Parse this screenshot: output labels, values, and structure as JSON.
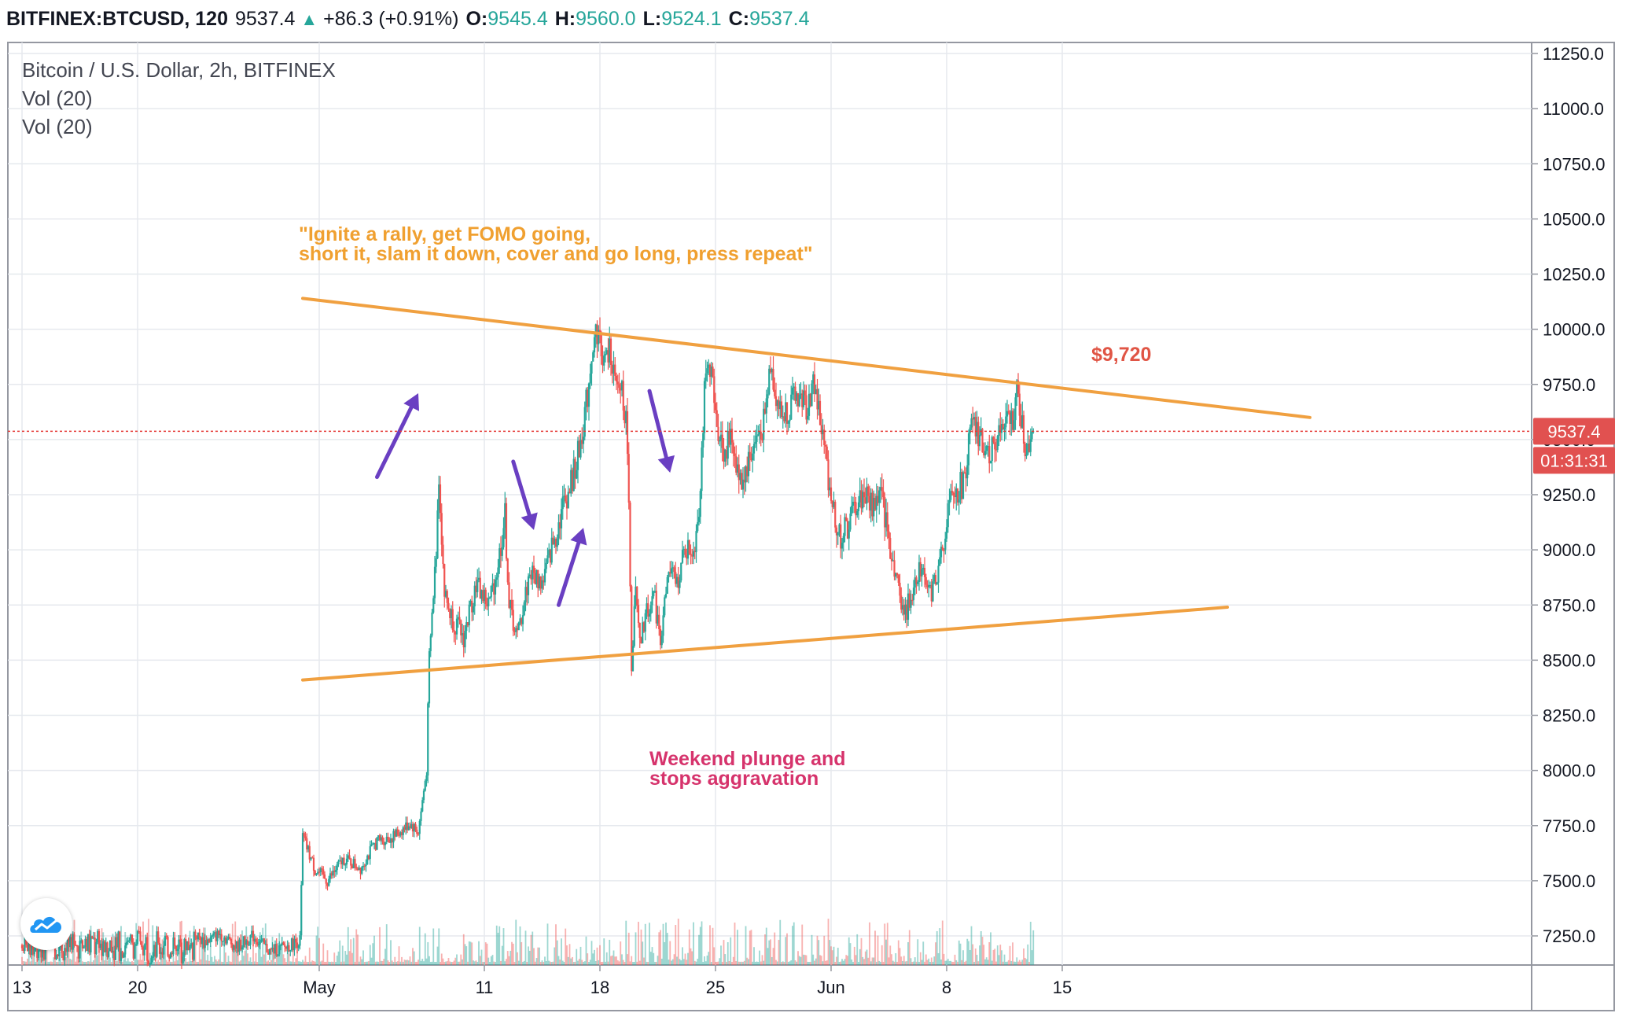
{
  "header": {
    "symbol": "BITFINEX:BTCUSD, 120",
    "last": "9537.4",
    "change": "+86.3 (+0.91%)",
    "open_label": "O:",
    "open": "9545.4",
    "high_label": "H:",
    "high": "9560.0",
    "low_label": "L:",
    "low": "9524.1",
    "close_label": "C:",
    "close": "9537.4"
  },
  "legend": {
    "title": "Bitcoin / U.S. Dollar, 2h, BITFINEX",
    "indicator_1": "Vol (20)",
    "indicator_2": "Vol (20)"
  },
  "price_tag": {
    "value": "9537.4",
    "countdown": "01:31:31"
  },
  "annotations": {
    "quote_line1": "\"Ignite a rally, get FOMO going,",
    "quote_line2": "short it, slam it down, cover and go long, press repeat\"",
    "level": "$9,720",
    "plunge_line1": "Weekend plunge and",
    "plunge_line2": "stops aggravation"
  },
  "colors": {
    "up": "#26a69a",
    "down": "#ef5350",
    "trendline": "#f0a040",
    "quote_text": "#f0a030",
    "level_text": "#e05545",
    "plunge_text": "#d6336c",
    "arrow": "#6a3fc2",
    "price_line": "#e53935",
    "price_tag_bg": "#e15150"
  },
  "chart_data": {
    "type": "candlestick",
    "title": "Bitcoin / U.S. Dollar, 2h, BITFINEX",
    "yaxis_ticks": [
      11250,
      11000,
      10750,
      10500,
      10250,
      10000,
      9750,
      9500,
      9250,
      9000,
      8750,
      8500,
      8250,
      8000,
      7750,
      7500,
      7250
    ],
    "ylim": [
      7130,
      11280
    ],
    "xaxis_ticks": [
      "13",
      "20",
      "May",
      "11",
      "18",
      "25",
      "Jun",
      "8",
      "15"
    ],
    "current_price": 9537.4,
    "price_path": [
      [
        "Apr 23 08:00",
        7270
      ],
      [
        "Apr 24 00:00",
        7220
      ],
      [
        "Apr 25 00:00",
        7260
      ],
      [
        "Apr 26 00:00",
        7200
      ],
      [
        "Apr 27 00:00",
        7250
      ],
      [
        "Apr 28 00:00",
        7180
      ],
      [
        "Apr 29 00:00",
        7200
      ],
      [
        "Apr 29 20:00",
        7230
      ],
      [
        "Apr 30 00:00",
        7700
      ],
      [
        "Apr 30 18:00",
        7550
      ],
      [
        "May 1 12:00",
        7500
      ],
      [
        "May 2 12:00",
        7600
      ],
      [
        "May 3 12:00",
        7560
      ],
      [
        "May 4 12:00",
        7680
      ],
      [
        "May 5 12:00",
        7700
      ],
      [
        "May 6 12:00",
        7760
      ],
      [
        "May 7 00:00",
        7720
      ],
      [
        "May 7 12:00",
        8000
      ],
      [
        "May 7 16:00",
        8500
      ],
      [
        "May 7 22:00",
        8800
      ],
      [
        "May 8 02:00",
        9000
      ],
      [
        "May 8 06:00",
        9350
      ],
      [
        "May 8 14:00",
        8800
      ],
      [
        "May 9 00:00",
        8700
      ],
      [
        "May 9 18:00",
        8600
      ],
      [
        "May 10 12:00",
        8850
      ],
      [
        "May 11 06:00",
        8750
      ],
      [
        "May 11 18:00",
        8900
      ],
      [
        "May 12 06:00",
        9150
      ],
      [
        "May 12 12:00",
        8750
      ],
      [
        "May 13 00:00",
        8600
      ],
      [
        "May 13 18:00",
        8900
      ],
      [
        "May 14 12:00",
        8850
      ],
      [
        "May 15 06:00",
        9050
      ],
      [
        "May 15 18:00",
        9200
      ],
      [
        "May 16 06:00",
        9300
      ],
      [
        "May 16 18:00",
        9450
      ],
      [
        "May 17 06:00",
        9700
      ],
      [
        "May 17 12:00",
        9900
      ],
      [
        "May 17 20:00",
        10000
      ],
      [
        "May 18 06:00",
        9850
      ],
      [
        "May 18 16:00",
        9900
      ],
      [
        "May 19 00:00",
        9700
      ],
      [
        "May 19 08:00",
        9750
      ],
      [
        "May 19 16:00",
        9500
      ],
      [
        "May 19 22:00",
        8500
      ],
      [
        "May 20 04:00",
        8800
      ],
      [
        "May 20 10:00",
        8550
      ],
      [
        "May 20 18:00",
        8700
      ],
      [
        "May 21 06:00",
        8800
      ],
      [
        "May 21 16:00",
        8600
      ],
      [
        "May 22 04:00",
        8900
      ],
      [
        "May 22 16:00",
        8850
      ],
      [
        "May 23 04:00",
        9000
      ],
      [
        "May 23 16:00",
        9000
      ],
      [
        "May 24 00:00",
        9200
      ],
      [
        "May 24 08:00",
        9700
      ],
      [
        "May 24 16:00",
        9850
      ],
      [
        "May 25 00:00",
        9600
      ],
      [
        "May 25 12:00",
        9450
      ],
      [
        "May 26 00:00",
        9500
      ],
      [
        "May 26 12:00",
        9300
      ],
      [
        "May 27 00:00",
        9400
      ],
      [
        "May 27 12:00",
        9500
      ],
      [
        "May 28 00:00",
        9600
      ],
      [
        "May 28 08:00",
        9850
      ],
      [
        "May 28 16:00",
        9700
      ],
      [
        "May 29 00:00",
        9600
      ],
      [
        "May 29 12:00",
        9650
      ],
      [
        "May 30 00:00",
        9700
      ],
      [
        "May 30 12:00",
        9650
      ],
      [
        "May 31 00:00",
        9750
      ],
      [
        "May 31 12:00",
        9500
      ],
      [
        "Jun 1 00:00",
        9250
      ],
      [
        "Jun 1 12:00",
        9050
      ],
      [
        "Jun 2 00:00",
        9100
      ],
      [
        "Jun 2 12:00",
        9200
      ],
      [
        "Jun 3 00:00",
        9250
      ],
      [
        "Jun 3 12:00",
        9200
      ],
      [
        "Jun 4 00:00",
        9250
      ],
      [
        "Jun 4 12:00",
        9050
      ],
      [
        "Jun 5 00:00",
        8850
      ],
      [
        "Jun 5 12:00",
        8700
      ],
      [
        "Jun 6 00:00",
        8850
      ],
      [
        "Jun 6 12:00",
        8950
      ],
      [
        "Jun 7 00:00",
        8800
      ],
      [
        "Jun 7 12:00",
        8900
      ],
      [
        "Jun 8 00:00",
        9150
      ],
      [
        "Jun 8 12:00",
        9250
      ],
      [
        "Jun 9 00:00",
        9300
      ],
      [
        "Jun 9 12:00",
        9550
      ],
      [
        "Jun 10 00:00",
        9500
      ],
      [
        "Jun 10 12:00",
        9450
      ],
      [
        "Jun 11 00:00",
        9500
      ],
      [
        "Jun 11 12:00",
        9550
      ],
      [
        "Jun 12 00:00",
        9600
      ],
      [
        "Jun 12 06:00",
        9700
      ],
      [
        "Jun 12 12:00",
        9600
      ],
      [
        "Jun 12 18:00",
        9450
      ],
      [
        "Jun 13 00:00",
        9500
      ],
      [
        "Jun 13 06:00",
        9537.4
      ]
    ],
    "trendlines": [
      {
        "name": "resistance",
        "from": [
          "Apr 30 00:00",
          10140
        ],
        "to": [
          "Jun 30 00:00",
          9600
        ]
      },
      {
        "name": "support",
        "from": [
          "Apr 30 00:00",
          8410
        ],
        "to": [
          "Jun 25 00:00",
          8740
        ]
      }
    ],
    "annotation_arrows": [
      {
        "direction": "up",
        "from": [
          "May 4 12:00",
          9330
        ],
        "to": [
          "May 7 00:00",
          9710
        ]
      },
      {
        "direction": "down",
        "from": [
          "May 12 18:00",
          9400
        ],
        "to": [
          "May 14 00:00",
          9090
        ]
      },
      {
        "direction": "up",
        "from": [
          "May 15 12:00",
          8750
        ],
        "to": [
          "May 17 00:00",
          9100
        ]
      },
      {
        "direction": "down",
        "from": [
          "May 21 00:00",
          9720
        ],
        "to": [
          "May 22 06:00",
          9350
        ]
      }
    ],
    "volume": "per-candle volume bars along the bottom pane",
    "grid": true,
    "legend": "top-left"
  }
}
